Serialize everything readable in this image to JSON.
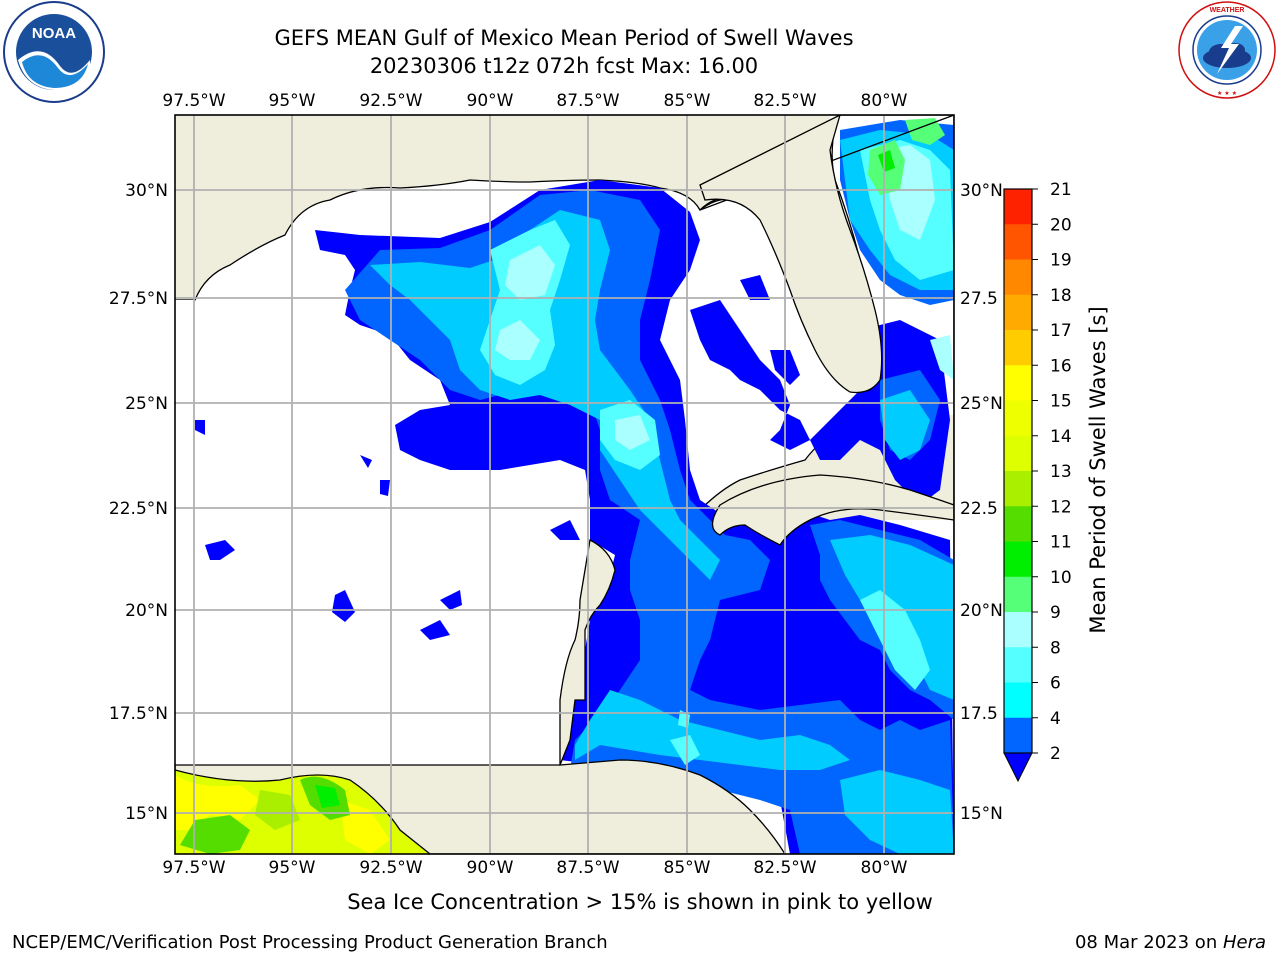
{
  "title_line1": "GEFS MEAN Gulf of Mexico Mean Period of Swell Waves",
  "title_line2": "20230306 t12z 072h fcst   Max: 16.00",
  "lon_labels": [
    "97.5°W",
    "95°W",
    "92.5°W",
    "90°W",
    "87.5°W",
    "85°W",
    "82.5°W",
    "80°W"
  ],
  "lat_labels_left": [
    "30°N",
    "27.5°N",
    "25°N",
    "22.5°N",
    "20°N",
    "17.5°N",
    "15°N"
  ],
  "lat_labels_right": [
    "30°N",
    "27.5",
    "25°N",
    "22.5",
    "20°N",
    "17.5",
    "15°N"
  ],
  "colorbar": {
    "label": "Mean Period of Swell Waves [s]",
    "ticks": [
      "2",
      "4",
      "6",
      "8",
      "9",
      "10",
      "11",
      "12",
      "13",
      "14",
      "15",
      "16",
      "17",
      "18",
      "19",
      "20",
      "21"
    ],
    "colors": [
      "#0066ff",
      "#00ccff",
      "#00ffff",
      "#55ffff",
      "#aaffff",
      "#55ff77",
      "#00ee00",
      "#55dd00",
      "#aaee00",
      "#ddff00",
      "#eeff00",
      "#ffff00",
      "#ffcc00",
      "#ffaa00",
      "#ff8800",
      "#ff5500",
      "#ff2200",
      "#ff0000"
    ],
    "under_color": "#0000ff"
  },
  "ice_note": "Sea Ice Concentration > 15% is shown in pink to yellow",
  "footer_left": "NCEP/EMC/Verification Post Processing Product Generation Branch",
  "footer_right_date": "08 Mar 2023 on ",
  "footer_right_machine": "Hera",
  "logos": {
    "noaa": "NOAA",
    "nws_ring": "NATIONAL WEATHER SERVICE",
    "noaa_ring": "NATIONAL OCEANIC AND ATMOSPHERIC ADMINISTRATION · U.S. DEPARTMENT OF COMMERCE"
  },
  "colors": {
    "land": "#efeddc",
    "water_none": "#ffffff",
    "grid": "#b0b0b0"
  }
}
